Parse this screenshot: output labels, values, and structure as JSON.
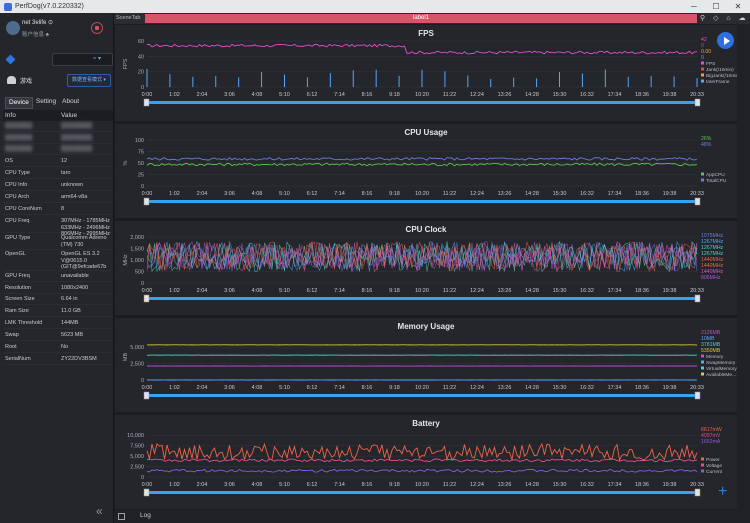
{
  "window": {
    "title": "PerfDog(v7.0.220332)",
    "btn_min": "─",
    "btn_max": "☐",
    "btn_close": "✕"
  },
  "user": {
    "name": "net 3elife ⊙",
    "sub": "账户信息 ♣"
  },
  "device": {
    "wifi": "≈ ▾"
  },
  "app": {
    "label": "游戏",
    "select": "数据查看模式 ▾"
  },
  "tabs": [
    "Device",
    "Setting",
    "About"
  ],
  "info_table": {
    "headers": [
      "Info",
      "Value"
    ],
    "rows": [
      {
        "k": "███████",
        "v": "████████",
        "blur": true
      },
      {
        "k": "███████",
        "v": "████████",
        "blur": true
      },
      {
        "k": "███████",
        "v": "████████",
        "blur": true
      },
      {
        "k": "OS",
        "v": "12"
      },
      {
        "k": "CPU Type",
        "v": "taro"
      },
      {
        "k": "CPU Info",
        "v": "unknown"
      },
      {
        "k": "CPU Arch",
        "v": "arm64-v8a"
      },
      {
        "k": "CPU CoreNum",
        "v": "8"
      },
      {
        "k": "CPU Freq",
        "v": "307MHz - 1785MHz 633MHz - 2496MHz 806MHz - 2995MHz"
      },
      {
        "k": "GPU Type",
        "v": "Qualcomm Adreno (TM) 730"
      },
      {
        "k": "OpenGL",
        "v": "OpenGL ES 3.2 V@0615.0 (GIT@9efcade67b"
      },
      {
        "k": "GPU Freq",
        "v": "unavailable"
      },
      {
        "k": "Resolution",
        "v": "1080x2400"
      },
      {
        "k": "Screen Size",
        "v": "6.64 in"
      },
      {
        "k": "Ram Size",
        "v": "11.0 GB"
      },
      {
        "k": "LMK Threshold",
        "v": "144MB"
      },
      {
        "k": "Swap",
        "v": "5623 MB"
      },
      {
        "k": "Root",
        "v": "No"
      },
      {
        "k": "SerialNum",
        "v": "ZY22DV3BSM"
      }
    ]
  },
  "main": {
    "scene_tab": "SceneTab",
    "label": "label1",
    "toolbar_icons": "⚲ ◇ ⌂ ☁",
    "log_label": "Log",
    "collapse": "«"
  },
  "time_ticks": [
    "0:00",
    "1:02",
    "2:04",
    "3:06",
    "4:08",
    "5:10",
    "6:12",
    "7:14",
    "8:16",
    "9:18",
    "10:20",
    "11:22",
    "12:24",
    "13:26",
    "14:28",
    "15:30",
    "16:32",
    "17:34",
    "18:36",
    "19:38",
    "20:33"
  ],
  "colors": {
    "accent": "#2f6fe0",
    "scene_red": "#d95369",
    "timeline": "#36a3f0"
  },
  "chart_data": [
    {
      "type": "line",
      "title": "FPS",
      "ylabel": "FPS",
      "ylim": [
        0,
        60
      ],
      "yticks": [
        "0",
        "20",
        "40",
        "60"
      ],
      "x_range": [
        "0:00",
        "20:33"
      ],
      "series": [
        {
          "name": "FPS",
          "color": "#e04fd0",
          "level": 54,
          "level_late": 45,
          "change_at": "10:00",
          "readout": "42"
        },
        {
          "name": "Jank(/10min)",
          "color": "#e24b4b",
          "readout": "0"
        },
        {
          "name": "BigJank(/10min)",
          "color": "#f3a03c",
          "readout": "0.00"
        },
        {
          "name": "InterFrame",
          "color": "#55a7ff",
          "readout": "0"
        }
      ]
    },
    {
      "type": "line",
      "title": "CPU Usage",
      "ylabel": "%",
      "ylim": [
        0,
        100
      ],
      "yticks": [
        "0",
        "25",
        "50",
        "75",
        "100"
      ],
      "x_range": [
        "0:00",
        "20:33"
      ],
      "series": [
        {
          "name": "AppCPU",
          "color": "#58c452",
          "level": 47,
          "readout": "26%"
        },
        {
          "name": "TotalCPU",
          "color": "#6f7bdc",
          "level": 59,
          "readout": "48%"
        }
      ]
    },
    {
      "type": "line",
      "title": "CPU Clock",
      "ylabel": "MHz",
      "ylim": [
        0,
        2000
      ],
      "yticks": [
        "0",
        "500",
        "1,000",
        "1,500",
        "2,000"
      ],
      "x_range": [
        "0:00",
        "20:33"
      ],
      "series": [
        {
          "name": "CPU0",
          "color": "#6f7bdc",
          "readout": "1075MHz"
        },
        {
          "name": "CPU1",
          "color": "#55a7ff",
          "readout": "1267MHz"
        },
        {
          "name": "CPU2",
          "color": "#4fd3c8",
          "readout": "1267MHz"
        },
        {
          "name": "CPU3",
          "color": "#4fd3c8",
          "readout": "1267MHz"
        },
        {
          "name": "CPU4",
          "color": "#f0634a",
          "readout": "1440MHz"
        },
        {
          "name": "CPU5",
          "color": "#f0634a",
          "readout": "1440MHz"
        },
        {
          "name": "CPU6",
          "color": "#e04fd0",
          "readout": "1440MHz"
        },
        {
          "name": "CPU7",
          "color": "#a55bd8",
          "readout": "806MHz"
        }
      ]
    },
    {
      "type": "line",
      "title": "Memory Usage",
      "ylabel": "MB",
      "ylim": [
        0,
        7000
      ],
      "yticks": [
        "0",
        "2,500",
        "5,000"
      ],
      "x_range": [
        "0:00",
        "20:33"
      ],
      "series": [
        {
          "name": "Memory",
          "color": "#c04fd0",
          "level": 2126,
          "readout": "2126MB"
        },
        {
          "name": "SwapMemory",
          "color": "#55a7ff",
          "level": 10,
          "readout": "10MB"
        },
        {
          "name": "VirtualMemory",
          "color": "#4fd3c8",
          "level": 3781,
          "readout": "3781MB"
        },
        {
          "name": "AvailableMe...",
          "color": "#d8c83a",
          "level": 5350,
          "readout": "5350MB"
        }
      ]
    },
    {
      "type": "line",
      "title": "Battery",
      "ylabel": "",
      "ylim": [
        0,
        11000
      ],
      "yticks": [
        "0",
        "2,500",
        "5,000",
        "7,500",
        "10,000"
      ],
      "x_range": [
        "0:00",
        "20:33"
      ],
      "series": [
        {
          "name": "Power",
          "color": "#f0634a",
          "level": 6000,
          "readout": "6617mW"
        },
        {
          "name": "Voltage",
          "color": "#e04f90",
          "level": 4000,
          "readout": "4097mV"
        },
        {
          "name": "Current",
          "color": "#8a5be0",
          "level": 1500,
          "readout": "1662mA"
        }
      ]
    }
  ]
}
